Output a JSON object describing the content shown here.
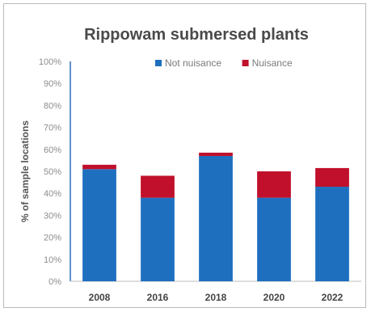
{
  "chart_data": {
    "type": "bar",
    "stacked": true,
    "title": "Rippowam submersed plants",
    "xlabel": "",
    "ylabel": "% of sample locations",
    "categories": [
      "2008",
      "2016",
      "2018",
      "2020",
      "2022"
    ],
    "series": [
      {
        "name": "Not nuisance",
        "color": "#1f6fbf",
        "values": [
          51,
          38,
          57,
          38,
          43
        ]
      },
      {
        "name": "Nuisance",
        "color": "#c0102b",
        "values": [
          2,
          10,
          1.5,
          12,
          8.5
        ]
      }
    ],
    "yticks": [
      "0%",
      "10%",
      "20%",
      "30%",
      "40%",
      "50%",
      "60%",
      "70%",
      "80%",
      "90%",
      "100%"
    ],
    "ylim": [
      0,
      100
    ],
    "legend": "top-right",
    "grid": false
  }
}
